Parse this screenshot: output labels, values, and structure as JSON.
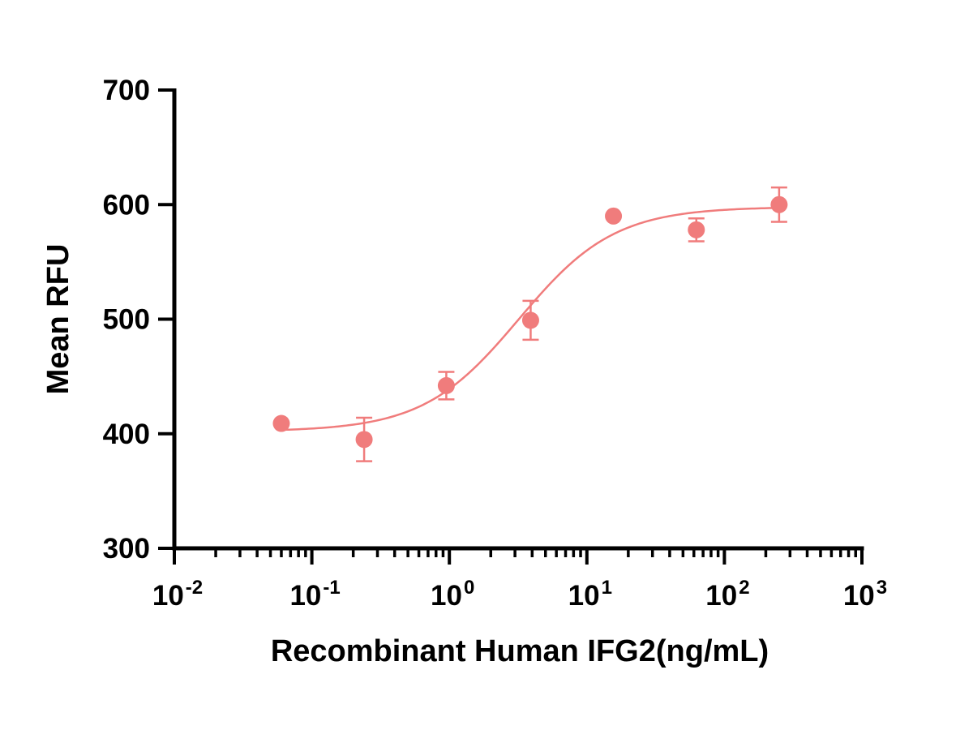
{
  "chart_data": {
    "type": "scatter",
    "title": "",
    "xlabel": "Recombinant Human IFG2(ng/mL)",
    "ylabel": "Mean RFU",
    "x_scale": "log",
    "xlim": [
      0.01,
      1000
    ],
    "ylim": [
      300,
      700
    ],
    "x_tick_labels": [
      {
        "value": 0.01,
        "base": "10",
        "exp": "-2"
      },
      {
        "value": 0.1,
        "base": "10",
        "exp": "-1"
      },
      {
        "value": 1,
        "base": "10",
        "exp": "0"
      },
      {
        "value": 10,
        "base": "10",
        "exp": "1"
      },
      {
        "value": 100,
        "base": "10",
        "exp": "2"
      },
      {
        "value": 1000,
        "base": "10",
        "exp": "3"
      }
    ],
    "y_tick_labels": [
      "300",
      "400",
      "500",
      "600",
      "700"
    ],
    "y_ticks": [
      300,
      400,
      500,
      600,
      700
    ],
    "grid": false,
    "color": "#f07c7c",
    "series": [
      {
        "points": [
          {
            "x": 0.06,
            "y": 409,
            "err": 0
          },
          {
            "x": 0.24,
            "y": 395,
            "err": 19
          },
          {
            "x": 0.95,
            "y": 442,
            "err": 12
          },
          {
            "x": 3.9,
            "y": 499,
            "err": 17
          },
          {
            "x": 15.6,
            "y": 590,
            "err": 0
          },
          {
            "x": 62.5,
            "y": 578,
            "err": 10
          },
          {
            "x": 250,
            "y": 600,
            "err": 15
          }
        ],
        "fit": {
          "model": "4PL",
          "bottom": 402,
          "top": 598,
          "ec50": 3.2,
          "hill": 1.25
        }
      }
    ]
  }
}
